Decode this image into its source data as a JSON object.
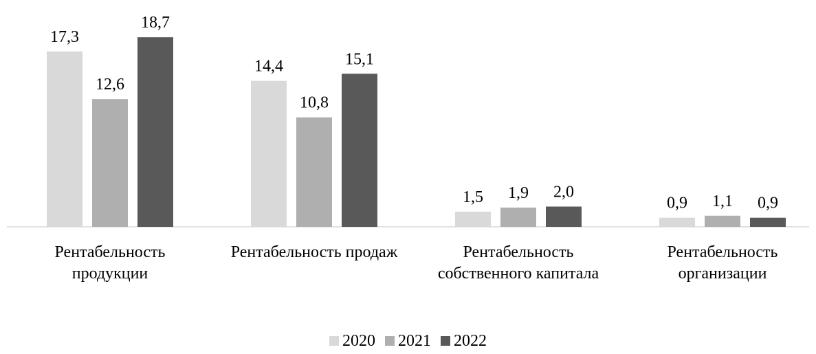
{
  "chart_data": {
    "type": "bar",
    "categories": [
      "Рентабельность продукции",
      "Рентабельность продаж",
      "Рентабельность собственного капитала",
      "Рентабельность организации"
    ],
    "series": [
      {
        "name": "2020",
        "color": "#d9d9d9",
        "values": [
          17.3,
          14.4,
          1.5,
          0.9
        ],
        "value_labels": [
          "17,3",
          "14,4",
          "1,5",
          "0,9"
        ]
      },
      {
        "name": "2021",
        "color": "#afafaf",
        "values": [
          12.6,
          10.8,
          1.9,
          1.1
        ],
        "value_labels": [
          "12,6",
          "10,8",
          "1,9",
          "1,1"
        ]
      },
      {
        "name": "2022",
        "color": "#595959",
        "values": [
          18.7,
          15.1,
          2.0,
          0.9
        ],
        "value_labels": [
          "18,7",
          "15,1",
          "2,0",
          "0,9"
        ]
      }
    ],
    "legend": "bottom"
  }
}
